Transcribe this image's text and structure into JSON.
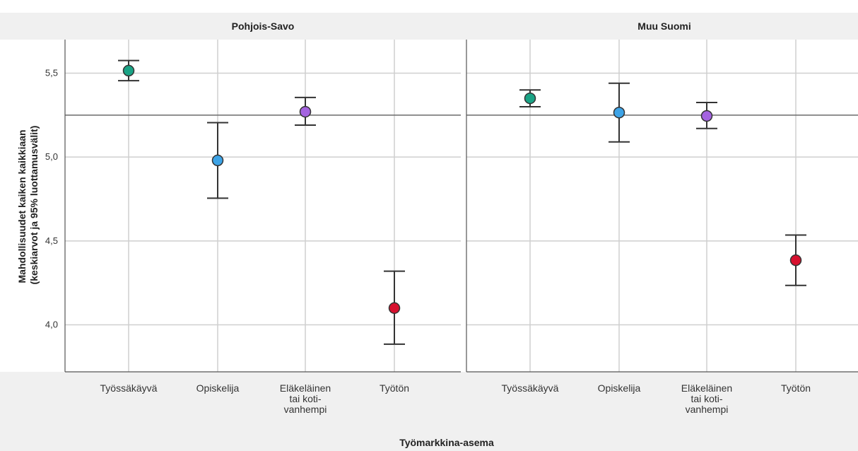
{
  "chart_data": {
    "type": "scatter",
    "subtype": "error-bar",
    "ylabel_lines": [
      "Mahdollisuudet kaiken kaikkiaan",
      "(keskiarvot ja 95% luottamusvälit)"
    ],
    "xlabel": "Työmarkkina-asema",
    "ylim": [
      3.72,
      5.7
    ],
    "yticks": [
      "4,0",
      "4,5",
      "5,0",
      "5,5"
    ],
    "ytick_values": [
      4.0,
      4.5,
      5.0,
      5.5
    ],
    "reference_line": 5.25,
    "grid": true,
    "categories": [
      [
        "Työssäkäyvä"
      ],
      [
        "Opiskelija"
      ],
      [
        "Eläkeläinen",
        "tai koti-",
        "vanhempi"
      ],
      [
        "Työtön"
      ]
    ],
    "category_colors": [
      "#1aa385",
      "#3da3e6",
      "#a463e0",
      "#d7102e"
    ],
    "panels": [
      {
        "title": "Pohjois-Savo",
        "points": [
          {
            "category": "Työssäkäyvä",
            "mean": 5.515,
            "ci_low": 5.455,
            "ci_high": 5.575
          },
          {
            "category": "Opiskelija",
            "mean": 4.98,
            "ci_low": 4.755,
            "ci_high": 5.205
          },
          {
            "category": "Eläkeläinen tai koti-vanhempi",
            "mean": 5.27,
            "ci_low": 5.19,
            "ci_high": 5.355
          },
          {
            "category": "Työtön",
            "mean": 4.1,
            "ci_low": 3.885,
            "ci_high": 4.32
          }
        ]
      },
      {
        "title": "Muu Suomi",
        "points": [
          {
            "category": "Työssäkäyvä",
            "mean": 5.35,
            "ci_low": 5.3,
            "ci_high": 5.4
          },
          {
            "category": "Opiskelija",
            "mean": 5.265,
            "ci_low": 5.09,
            "ci_high": 5.44
          },
          {
            "category": "Eläkeläinen tai koti-vanhempi",
            "mean": 5.245,
            "ci_low": 5.17,
            "ci_high": 5.325
          },
          {
            "category": "Työtön",
            "mean": 4.385,
            "ci_low": 4.235,
            "ci_high": 4.535
          }
        ]
      }
    ]
  }
}
